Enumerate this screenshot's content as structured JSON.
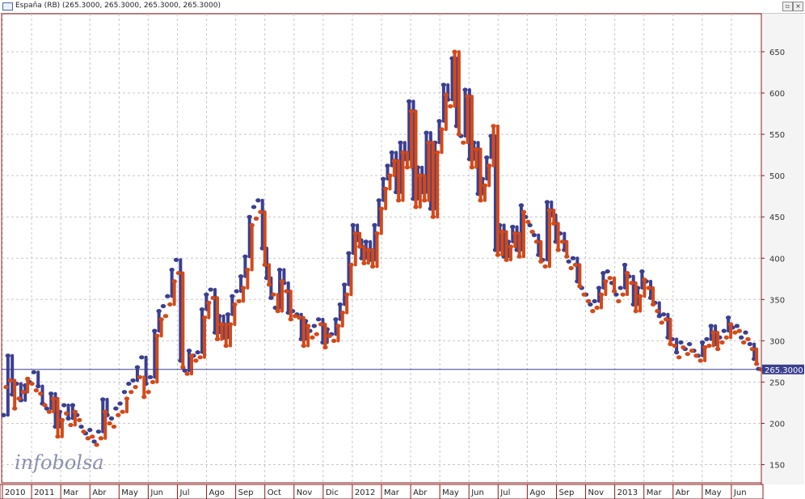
{
  "window": {
    "title": "España (RB) (265.3000, 265.3000, 265.3000, 265.3000)",
    "restore_glyph": "▫",
    "close_glyph": "×"
  },
  "watermark": "infobolsa",
  "chart_data": {
    "type": "line",
    "title": "",
    "ylim": [
      128,
      696
    ],
    "y_ticks": [
      150,
      200,
      250,
      300,
      350,
      400,
      450,
      500,
      550,
      600,
      650
    ],
    "grid": true,
    "last_value_label": "265.3000",
    "last_value": 265.3,
    "x_labels": [
      "2010",
      "2011",
      "Mar",
      "Abr",
      "May",
      "Jun",
      "Jul",
      "Ago",
      "Sep",
      "Oct",
      "Nov",
      "Dic",
      "2012",
      "Mar",
      "Abr",
      "May",
      "Jun",
      "Jul",
      "Ago",
      "Sep",
      "Nov",
      "2013",
      "Mar",
      "Abr",
      "May",
      "Jun"
    ],
    "series": [
      {
        "color": "#3b3f8f",
        "style": "dots-and-bars",
        "values": [
          210,
          282,
          235,
          248,
          228,
          246,
          250,
          262,
          245,
          224,
          218,
          236,
          196,
          214,
          222,
          206,
          222,
          210,
          196,
          188,
          192,
          178,
          190,
          229,
          210,
          206,
          218,
          224,
          238,
          248,
          252,
          268,
          280,
          248,
          256,
          312,
          336,
          342,
          354,
          386,
          398,
          276,
          264,
          288,
          282,
          286,
          338,
          356,
          362,
          310,
          330,
          304,
          332,
          354,
          360,
          378,
          402,
          450,
          462,
          470,
          412,
          376,
          352,
          340,
          386,
          370,
          334,
          336,
          332,
          302,
          324,
          312,
          318,
          326,
          298,
          314,
          308,
          326,
          344,
          368,
          406,
          440,
          422,
          400,
          420,
          398,
          440,
          470,
          496,
          512,
          528,
          480,
          540,
          520,
          590,
          472,
          510,
          480,
          552,
          460,
          540,
          566,
          610,
          592,
          642,
          560,
          548,
          604,
          520,
          540,
          478,
          496,
          522,
          548,
          410,
          440,
          402,
          420,
          438,
          410,
          464,
          450,
          440,
          428,
          404,
          398,
          468,
          452,
          420,
          430,
          410,
          396,
          400,
          372,
          364,
          356,
          344,
          348,
          364,
          382,
          384,
          370,
          356,
          364,
          392,
          378,
          344,
          364,
          384,
          372,
          352,
          346,
          330,
          332,
          304,
          302,
          286,
          298,
          290,
          296,
          288,
          282,
          298,
          302,
          318,
          296,
          304,
          312,
          328,
          316,
          318,
          304,
          310,
          296,
          278,
          266
        ]
      },
      {
        "color": "#d24a1a",
        "style": "dots-and-bars",
        "values": [
          244,
          252,
          218,
          230,
          238,
          254,
          248,
          240,
          236,
          222,
          214,
          230,
          184,
          204,
          212,
          198,
          214,
          204,
          190,
          182,
          184,
          174,
          182,
          214,
          200,
          196,
          210,
          214,
          230,
          238,
          244,
          256,
          232,
          238,
          250,
          306,
          326,
          330,
          344,
          372,
          382,
          268,
          260,
          282,
          276,
          280,
          328,
          346,
          352,
          302,
          320,
          294,
          320,
          344,
          348,
          364,
          386,
          440,
          448,
          456,
          392,
          368,
          356,
          336,
          372,
          360,
          326,
          330,
          328,
          294,
          318,
          304,
          308,
          320,
          292,
          306,
          300,
          318,
          334,
          356,
          392,
          430,
          414,
          394,
          410,
          390,
          430,
          460,
          484,
          500,
          518,
          470,
          528,
          510,
          578,
          462,
          500,
          470,
          540,
          450,
          528,
          556,
          598,
          584,
          650,
          550,
          540,
          596,
          510,
          532,
          470,
          488,
          512,
          560,
          404,
          432,
          398,
          414,
          430,
          402,
          456,
          444,
          432,
          420,
          396,
          390,
          458,
          442,
          410,
          420,
          402,
          388,
          392,
          366,
          356,
          348,
          336,
          340,
          356,
          372,
          376,
          360,
          348,
          356,
          382,
          370,
          336,
          354,
          374,
          364,
          344,
          336,
          322,
          326,
          296,
          294,
          280,
          292,
          284,
          288,
          282,
          276,
          292,
          294,
          310,
          290,
          298,
          304,
          320,
          310,
          312,
          298,
          302,
          290,
          272,
          265.3
        ]
      }
    ]
  }
}
